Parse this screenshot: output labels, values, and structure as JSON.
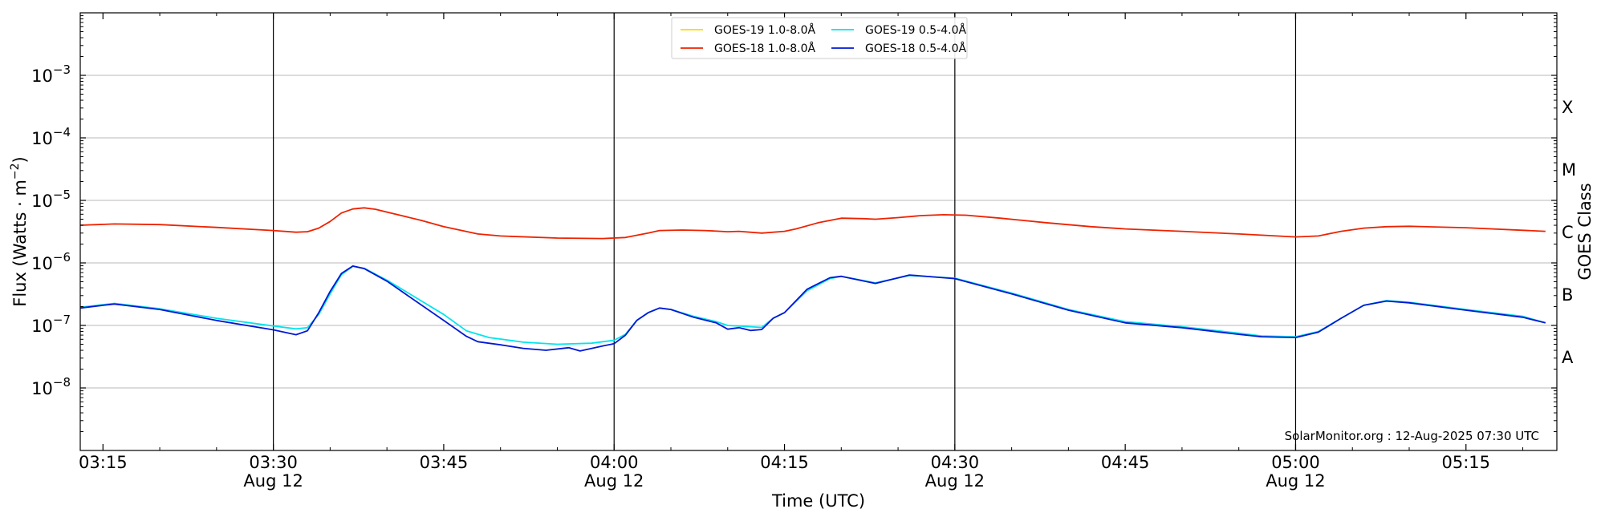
{
  "chart_data": {
    "type": "line",
    "xlabel": "Time (UTC)",
    "ylabel_base": "Flux (Watts · m",
    "ylabel_sup": "−2",
    "ylabel_close": ")",
    "y2label": "GOES Class",
    "y_scale": "log",
    "ylim": [
      1e-09,
      0.01
    ],
    "xlim": [
      "03:13",
      "05:23"
    ],
    "grid": "horizontal at decades",
    "legend_position": "top-center",
    "credit": "SolarMonitor.org : 12-Aug-2025 07:30 UTC",
    "y_ticks": [
      {
        "value": 1e-08,
        "base": "10",
        "exp": "−8"
      },
      {
        "value": 1e-07,
        "base": "10",
        "exp": "−7"
      },
      {
        "value": 1e-06,
        "base": "10",
        "exp": "−6"
      },
      {
        "value": 1e-05,
        "base": "10",
        "exp": "−5"
      },
      {
        "value": 0.0001,
        "base": "10",
        "exp": "−4"
      },
      {
        "value": 0.001,
        "base": "10",
        "exp": "−3"
      }
    ],
    "x_ticks": [
      {
        "time": "03:15",
        "label": "03:15",
        "date": ""
      },
      {
        "time": "03:30",
        "label": "03:30",
        "date": "Aug 12"
      },
      {
        "time": "03:45",
        "label": "03:45",
        "date": ""
      },
      {
        "time": "04:00",
        "label": "04:00",
        "date": "Aug 12"
      },
      {
        "time": "04:15",
        "label": "04:15",
        "date": ""
      },
      {
        "time": "04:30",
        "label": "04:30",
        "date": "Aug 12"
      },
      {
        "time": "04:45",
        "label": "04:45",
        "date": ""
      },
      {
        "time": "05:00",
        "label": "05:00",
        "date": "Aug 12"
      },
      {
        "time": "05:15",
        "label": "05:15",
        "date": ""
      }
    ],
    "vertical_lines": [
      "03:30",
      "04:00",
      "04:30",
      "05:00"
    ],
    "classes": [
      {
        "label": "A",
        "value": 3.162e-08
      },
      {
        "label": "B",
        "value": 3.162e-07
      },
      {
        "label": "C",
        "value": 3.162e-06
      },
      {
        "label": "M",
        "value": 3.162e-05
      },
      {
        "label": "X",
        "value": 0.0003162
      }
    ],
    "series": [
      {
        "name": "GOES-19 1.0-8.0Å",
        "color": "#ffd700",
        "points": []
      },
      {
        "name": "GOES-18 1.0-8.0Å",
        "color": "#ee2200",
        "points": [
          [
            "03:13",
            4e-06
          ],
          [
            "03:16",
            4.2e-06
          ],
          [
            "03:20",
            4.1e-06
          ],
          [
            "03:25",
            3.7e-06
          ],
          [
            "03:30",
            3.3e-06
          ],
          [
            "03:32",
            3.1e-06
          ],
          [
            "03:33",
            3.15e-06
          ],
          [
            "03:34",
            3.6e-06
          ],
          [
            "03:35",
            4.6e-06
          ],
          [
            "03:36",
            6.3e-06
          ],
          [
            "03:37",
            7.3e-06
          ],
          [
            "03:38",
            7.6e-06
          ],
          [
            "03:39",
            7.2e-06
          ],
          [
            "03:40",
            6.5e-06
          ],
          [
            "03:43",
            4.8e-06
          ],
          [
            "03:45",
            3.8e-06
          ],
          [
            "03:48",
            2.9e-06
          ],
          [
            "03:50",
            2.7e-06
          ],
          [
            "03:55",
            2.5e-06
          ],
          [
            "03:59",
            2.45e-06
          ],
          [
            "04:01",
            2.55e-06
          ],
          [
            "04:03",
            3e-06
          ],
          [
            "04:04",
            3.3e-06
          ],
          [
            "04:06",
            3.35e-06
          ],
          [
            "04:08",
            3.3e-06
          ],
          [
            "04:10",
            3.15e-06
          ],
          [
            "04:11",
            3.2e-06
          ],
          [
            "04:13",
            3e-06
          ],
          [
            "04:15",
            3.2e-06
          ],
          [
            "04:16",
            3.5e-06
          ],
          [
            "04:18",
            4.4e-06
          ],
          [
            "04:20",
            5.2e-06
          ],
          [
            "04:22",
            5.1e-06
          ],
          [
            "04:23",
            5e-06
          ],
          [
            "04:25",
            5.3e-06
          ],
          [
            "04:27",
            5.7e-06
          ],
          [
            "04:29",
            5.9e-06
          ],
          [
            "04:31",
            5.8e-06
          ],
          [
            "04:34",
            5.2e-06
          ],
          [
            "04:38",
            4.4e-06
          ],
          [
            "04:42",
            3.8e-06
          ],
          [
            "04:45",
            3.5e-06
          ],
          [
            "04:50",
            3.2e-06
          ],
          [
            "04:55",
            2.9e-06
          ],
          [
            "05:00",
            2.6e-06
          ],
          [
            "05:02",
            2.7e-06
          ],
          [
            "05:04",
            3.2e-06
          ],
          [
            "05:06",
            3.6e-06
          ],
          [
            "05:08",
            3.8e-06
          ],
          [
            "05:10",
            3.85e-06
          ],
          [
            "05:15",
            3.65e-06
          ],
          [
            "05:22",
            3.2e-06
          ]
        ]
      },
      {
        "name": "GOES-19 0.5-4.0Å",
        "color": "#00e5ee",
        "points": [
          [
            "03:13",
            1.95e-07
          ],
          [
            "03:15",
            2.15e-07
          ],
          [
            "03:16",
            2.25e-07
          ],
          [
            "03:20",
            1.85e-07
          ],
          [
            "03:25",
            1.3e-07
          ],
          [
            "03:30",
            9.8e-08
          ],
          [
            "03:32",
            8.8e-08
          ],
          [
            "03:33",
            9.2e-08
          ],
          [
            "03:34",
            1.5e-07
          ],
          [
            "03:35",
            3.2e-07
          ],
          [
            "03:36",
            6.5e-07
          ],
          [
            "03:37",
            8.8e-07
          ],
          [
            "03:38",
            8.2e-07
          ],
          [
            "03:40",
            5.3e-07
          ],
          [
            "03:45",
            1.5e-07
          ],
          [
            "03:47",
            8.2e-08
          ],
          [
            "03:49",
            6.4e-08
          ],
          [
            "03:52",
            5.4e-08
          ],
          [
            "03:55",
            5e-08
          ],
          [
            "03:58",
            5.2e-08
          ],
          [
            "04:00",
            5.8e-08
          ],
          [
            "04:01",
            7.2e-08
          ],
          [
            "04:02",
            1.2e-07
          ],
          [
            "04:03",
            1.6e-07
          ],
          [
            "04:04",
            1.9e-07
          ],
          [
            "04:05",
            1.8e-07
          ],
          [
            "04:07",
            1.4e-07
          ],
          [
            "04:09",
            1.15e-07
          ],
          [
            "04:10",
            1e-07
          ],
          [
            "04:13",
            9.3e-08
          ],
          [
            "04:14",
            1.3e-07
          ],
          [
            "04:15",
            1.6e-07
          ],
          [
            "04:17",
            3.6e-07
          ],
          [
            "04:19",
            5.6e-07
          ],
          [
            "04:20",
            6.1e-07
          ],
          [
            "04:23",
            4.8e-07
          ],
          [
            "04:26",
            6.3e-07
          ],
          [
            "04:30",
            5.7e-07
          ],
          [
            "04:35",
            3.3e-07
          ],
          [
            "04:40",
            1.8e-07
          ],
          [
            "04:45",
            1.15e-07
          ],
          [
            "04:50",
            9.5e-08
          ],
          [
            "04:55",
            7.5e-08
          ],
          [
            "04:57",
            6.8e-08
          ],
          [
            "05:00",
            6.6e-08
          ],
          [
            "05:02",
            8e-08
          ],
          [
            "05:04",
            1.3e-07
          ],
          [
            "05:06",
            2.1e-07
          ],
          [
            "05:08",
            2.5e-07
          ],
          [
            "05:10",
            2.35e-07
          ],
          [
            "05:15",
            1.8e-07
          ],
          [
            "05:20",
            1.4e-07
          ],
          [
            "05:22",
            1.1e-07
          ]
        ]
      },
      {
        "name": "GOES-18 0.5-4.0Å",
        "color": "#0018d4",
        "points": [
          [
            "03:13",
            1.9e-07
          ],
          [
            "03:15",
            2.1e-07
          ],
          [
            "03:16",
            2.2e-07
          ],
          [
            "03:20",
            1.8e-07
          ],
          [
            "03:25",
            1.2e-07
          ],
          [
            "03:30",
            8.5e-08
          ],
          [
            "03:32",
            7.1e-08
          ],
          [
            "03:33",
            8.2e-08
          ],
          [
            "03:34",
            1.6e-07
          ],
          [
            "03:35",
            3.5e-07
          ],
          [
            "03:36",
            6.8e-07
          ],
          [
            "03:37",
            8.9e-07
          ],
          [
            "03:38",
            8.1e-07
          ],
          [
            "03:40",
            5.1e-07
          ],
          [
            "03:45",
            1.2e-07
          ],
          [
            "03:47",
            6.7e-08
          ],
          [
            "03:48",
            5.5e-08
          ],
          [
            "03:50",
            4.9e-08
          ],
          [
            "03:52",
            4.3e-08
          ],
          [
            "03:54",
            4e-08
          ],
          [
            "03:56",
            4.4e-08
          ],
          [
            "03:57",
            3.9e-08
          ],
          [
            "03:59",
            4.7e-08
          ],
          [
            "04:00",
            5.1e-08
          ],
          [
            "04:01",
            7e-08
          ],
          [
            "04:02",
            1.2e-07
          ],
          [
            "04:03",
            1.6e-07
          ],
          [
            "04:04",
            1.9e-07
          ],
          [
            "04:05",
            1.8e-07
          ],
          [
            "04:07",
            1.35e-07
          ],
          [
            "04:09",
            1.1e-07
          ],
          [
            "04:10",
            8.7e-08
          ],
          [
            "04:11",
            9.2e-08
          ],
          [
            "04:12",
            8.3e-08
          ],
          [
            "04:13",
            8.6e-08
          ],
          [
            "04:14",
            1.3e-07
          ],
          [
            "04:15",
            1.6e-07
          ],
          [
            "04:17",
            3.8e-07
          ],
          [
            "04:19",
            5.8e-07
          ],
          [
            "04:20",
            6.1e-07
          ],
          [
            "04:23",
            4.7e-07
          ],
          [
            "04:26",
            6.4e-07
          ],
          [
            "04:30",
            5.6e-07
          ],
          [
            "04:35",
            3.2e-07
          ],
          [
            "04:40",
            1.75e-07
          ],
          [
            "04:45",
            1.1e-07
          ],
          [
            "04:50",
            9.2e-08
          ],
          [
            "04:55",
            7.2e-08
          ],
          [
            "04:57",
            6.6e-08
          ],
          [
            "05:00",
            6.4e-08
          ],
          [
            "05:02",
            7.8e-08
          ],
          [
            "05:04",
            1.3e-07
          ],
          [
            "05:06",
            2.1e-07
          ],
          [
            "05:08",
            2.45e-07
          ],
          [
            "05:10",
            2.3e-07
          ],
          [
            "05:15",
            1.75e-07
          ],
          [
            "05:20",
            1.35e-07
          ],
          [
            "05:22",
            1.1e-07
          ]
        ]
      }
    ]
  }
}
